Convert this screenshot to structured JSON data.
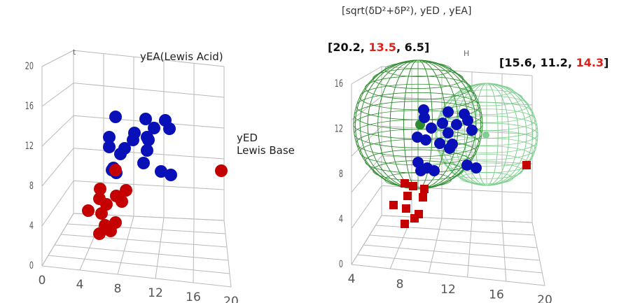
{
  "page_title": "[sqrt(δD²+δP²), yED , yEA]",
  "left_chart": {
    "label_yea": "yEA(Lewis Acid)",
    "label_yed_line1": "yED",
    "label_yed_line2": "Lewis Base",
    "corner_letter": "t"
  },
  "right_chart": {
    "corner_letter": "H",
    "sphere1_label": {
      "v1": "20.2",
      "v2": "13.5",
      "v3": "6.5"
    },
    "sphere2_label": {
      "v1": "15.6",
      "v2": "11.2",
      "v3": "14.3"
    }
  },
  "colors": {
    "good": "#0a10b8",
    "bad": "#c40000",
    "sphere1": "#2e8b2e",
    "sphere2": "#7fcf8f",
    "highlight": "#e0201a"
  },
  "chart_data": [
    {
      "type": "scatter",
      "projection": "3d",
      "axes": {
        "x": "yED",
        "z": "yEA"
      },
      "z_ticks": [
        "0",
        "4",
        "8",
        "12",
        "16",
        "20"
      ],
      "x_ticks": [
        "0",
        "4",
        "8",
        "12",
        "16",
        "20"
      ],
      "series": [
        {
          "color": "#0a10b8",
          "points": [
            [
              7,
              0,
              16
            ],
            [
              10,
              0,
              16
            ],
            [
              12,
              0,
              16
            ],
            [
              9,
              0,
              15
            ],
            [
              11,
              0,
              15
            ],
            [
              10,
              0,
              14
            ],
            [
              12,
              0,
              14
            ],
            [
              7,
              0,
              13
            ],
            [
              9,
              0,
              13
            ],
            [
              11,
              0,
              13
            ],
            [
              6,
              0,
              12
            ],
            [
              8,
              0,
              12
            ],
            [
              10,
              0,
              12
            ],
            [
              7,
              0,
              11
            ],
            [
              11,
              0,
              11
            ],
            [
              9,
              0,
              10
            ],
            [
              13,
              0,
              10
            ],
            [
              15,
              0,
              9
            ],
            [
              6,
              0,
              9
            ],
            [
              7,
              0,
              8
            ]
          ]
        },
        {
          "color": "#c40000",
          "points": [
            [
              6,
              0,
              9
            ],
            [
              6,
              0,
              7
            ],
            [
              8,
              0,
              6
            ],
            [
              6,
              0,
              6
            ],
            [
              7,
              0,
              5
            ],
            [
              9,
              0,
              5
            ],
            [
              8,
              0,
              4
            ],
            [
              6,
              0,
              4
            ],
            [
              4,
              0,
              3
            ],
            [
              7,
              0,
              2
            ],
            [
              8,
              0,
              2
            ],
            [
              9,
              0,
              2
            ],
            [
              6,
              0,
              1
            ],
            [
              7,
              0,
              1
            ],
            [
              19,
              0,
              8
            ]
          ]
        }
      ]
    },
    {
      "type": "scatter",
      "projection": "3d",
      "z_ticks": [
        "0",
        "4",
        "8",
        "12",
        "16"
      ],
      "x_ticks": [
        "4",
        "8",
        "12",
        "16",
        "20"
      ],
      "spheres": [
        {
          "center": [
            20.2,
            13.5,
            6.5
          ],
          "color": "#2e8b2e"
        },
        {
          "center": [
            15.6,
            11.2,
            14.3
          ],
          "color": "#7fcf8f"
        }
      ],
      "series": [
        {
          "color": "#0a10b8",
          "points": [
            [
              9,
              0,
              14
            ],
            [
              12,
              0,
              14
            ],
            [
              13,
              0,
              13
            ],
            [
              14,
              0,
              13
            ],
            [
              8,
              0,
              12
            ],
            [
              10,
              0,
              12
            ],
            [
              12,
              0,
              12
            ],
            [
              13,
              0,
              11
            ],
            [
              14,
              0,
              11
            ],
            [
              7,
              0,
              11
            ],
            [
              9,
              0,
              10
            ],
            [
              11,
              0,
              10
            ],
            [
              8,
              0,
              9
            ],
            [
              9,
              0,
              9
            ],
            [
              10,
              0,
              9
            ],
            [
              15,
              0,
              9
            ],
            [
              16,
              0,
              9
            ]
          ]
        },
        {
          "color": "#c40000",
          "points": [
            [
              7,
              0,
              7
            ],
            [
              9,
              0,
              7
            ],
            [
              8,
              0,
              6
            ],
            [
              11,
              0,
              6
            ],
            [
              5,
              0,
              5
            ],
            [
              7,
              0,
              5
            ],
            [
              9,
              0,
              4
            ],
            [
              10,
              0,
              4
            ],
            [
              7,
              0,
              3
            ],
            [
              8,
              0,
              2
            ],
            [
              21,
              0,
              9
            ]
          ]
        }
      ]
    }
  ]
}
